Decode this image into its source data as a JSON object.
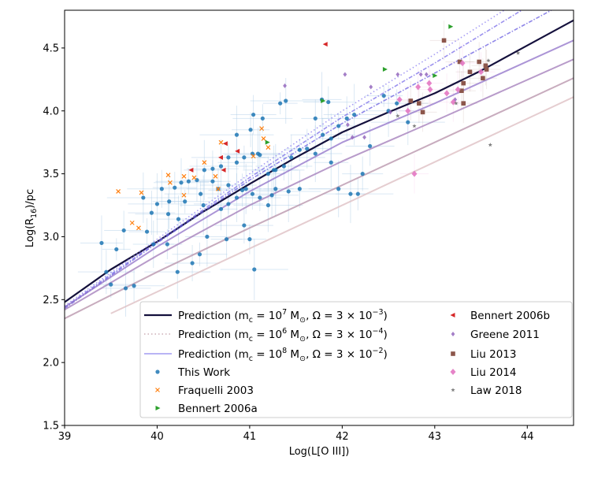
{
  "chart_data": {
    "type": "scatter",
    "xlabel": "Log(L[O III])",
    "ylabel": "Log(R_16)/pc",
    "xlim": [
      39,
      44.5
    ],
    "ylim": [
      1.5,
      4.8
    ],
    "xticks": [
      "39",
      "40",
      "41",
      "42",
      "43",
      "44"
    ],
    "yticks": [
      "1.5",
      "2.0",
      "2.5",
      "3.0",
      "3.5",
      "4.0",
      "4.5"
    ],
    "grid": false,
    "legend_placement": "lower-right",
    "lines": [
      {
        "name": "Prediction (m_c = 10^7 M_⊙, Ω = 3 × 10^−3)",
        "color": "#14103c",
        "style": "solid",
        "in_legend": true,
        "points": [
          [
            39,
            2.48
          ],
          [
            39.5,
            2.74
          ],
          [
            40,
            2.96
          ],
          [
            40.5,
            3.2
          ],
          [
            41,
            3.42
          ],
          [
            41.5,
            3.63
          ],
          [
            42,
            3.83
          ],
          [
            42.5,
            3.99
          ],
          [
            43,
            4.14
          ],
          [
            43.5,
            4.32
          ],
          [
            44,
            4.52
          ],
          [
            44.5,
            4.72
          ]
        ]
      },
      {
        "name": "Prediction (m_c = 10^6 M_⊙, Ω = 3 × 10^−4)",
        "color": "#d9c2c8",
        "style": "dotted",
        "in_legend": true,
        "points": []
      },
      {
        "name": "Prediction (m_c = 10^8 M_⊙, Ω = 3 × 10^−2)",
        "color": "#b9b4f5",
        "style": "solid",
        "in_legend": true,
        "points": []
      },
      {
        "name": "",
        "color": "#8a7cf0",
        "style": "dotted",
        "in_legend": false,
        "points": [
          [
            39,
            2.45
          ],
          [
            40,
            2.98
          ],
          [
            41,
            3.5
          ],
          [
            42,
            4.0
          ],
          [
            43,
            4.45
          ],
          [
            43.75,
            4.8
          ]
        ]
      },
      {
        "name": "",
        "color": "#7a6ce8",
        "style": "dashdot",
        "in_legend": false,
        "points": [
          [
            39,
            2.44
          ],
          [
            40,
            2.96
          ],
          [
            41,
            3.47
          ],
          [
            42,
            3.95
          ],
          [
            43,
            4.38
          ],
          [
            43.94,
            4.8
          ]
        ]
      },
      {
        "name": "",
        "color": "#6a5ee0",
        "style": "dashdot",
        "in_legend": false,
        "points": [
          [
            39,
            2.43
          ],
          [
            40,
            2.95
          ],
          [
            41,
            3.45
          ],
          [
            42,
            3.9
          ],
          [
            43,
            4.3
          ],
          [
            44.26,
            4.8
          ]
        ]
      },
      {
        "name": "",
        "color": "#8f70c8",
        "style": "solid",
        "in_legend": false,
        "points": [
          [
            39,
            2.44
          ],
          [
            40,
            2.92
          ],
          [
            41,
            3.36
          ],
          [
            42,
            3.75
          ],
          [
            43,
            4.06
          ],
          [
            44.5,
            4.56
          ]
        ]
      },
      {
        "name": "",
        "color": "#a07ab8",
        "style": "solid",
        "in_legend": false,
        "points": [
          [
            39,
            2.42
          ],
          [
            40,
            2.85
          ],
          [
            41,
            3.25
          ],
          [
            42,
            3.6
          ],
          [
            43,
            3.92
          ],
          [
            44.5,
            4.41
          ]
        ]
      },
      {
        "name": "",
        "color": "#b590a8",
        "style": "solid",
        "in_legend": false,
        "points": [
          [
            39,
            2.35
          ],
          [
            40,
            2.72
          ],
          [
            41,
            3.07
          ],
          [
            42,
            3.41
          ],
          [
            43,
            3.75
          ],
          [
            44.5,
            4.26
          ]
        ]
      },
      {
        "name": "",
        "color": "#dcbcc0",
        "style": "solid",
        "in_legend": false,
        "points": [
          [
            39.5,
            2.39
          ],
          [
            44.5,
            4.11
          ]
        ]
      }
    ],
    "series": [
      {
        "name": "This Work",
        "marker": "circle",
        "color": "#1f77b4",
        "errorbars": true,
        "points": [
          [
            39.56,
            2.9
          ],
          [
            39.64,
            3.05
          ],
          [
            39.66,
            2.59
          ],
          [
            39.75,
            2.61
          ],
          [
            39.85,
            3.31
          ],
          [
            39.89,
            3.04
          ],
          [
            39.94,
            3.19
          ],
          [
            40.0,
            3.26
          ],
          [
            40.05,
            3.38
          ],
          [
            40.13,
            3.28
          ],
          [
            40.19,
            3.39
          ],
          [
            40.26,
            3.43
          ],
          [
            40.34,
            3.44
          ],
          [
            40.43,
            3.45
          ],
          [
            40.51,
            3.53
          ],
          [
            40.6,
            3.54
          ],
          [
            40.69,
            3.56
          ],
          [
            40.77,
            3.63
          ],
          [
            40.86,
            3.59
          ],
          [
            40.94,
            3.63
          ],
          [
            41.03,
            3.66
          ],
          [
            41.11,
            3.65
          ],
          [
            41.2,
            3.5
          ],
          [
            41.28,
            3.53
          ],
          [
            41.37,
            3.56
          ],
          [
            41.45,
            3.63
          ],
          [
            41.54,
            3.69
          ],
          [
            41.62,
            3.7
          ],
          [
            41.71,
            3.66
          ],
          [
            41.79,
            3.81
          ],
          [
            41.88,
            3.78
          ],
          [
            41.96,
            3.88
          ],
          [
            42.05,
            3.94
          ],
          [
            42.13,
            3.97
          ],
          [
            41.54,
            3.38
          ],
          [
            41.28,
            3.38
          ],
          [
            41.03,
            3.34
          ],
          [
            40.86,
            3.31
          ],
          [
            40.77,
            3.26
          ],
          [
            40.69,
            3.22
          ],
          [
            40.54,
            3.0
          ],
          [
            40.38,
            2.79
          ],
          [
            40.22,
            2.72
          ],
          [
            40.11,
            2.94
          ],
          [
            39.96,
            2.94
          ],
          [
            40.3,
            3.28
          ],
          [
            40.66,
            3.38
          ],
          [
            40.86,
            3.81
          ],
          [
            41.01,
            3.85
          ],
          [
            41.09,
            3.66
          ],
          [
            41.14,
            3.94
          ],
          [
            41.39,
            4.08
          ],
          [
            41.33,
            4.06
          ],
          [
            41.04,
            3.97
          ],
          [
            40.77,
            3.41
          ],
          [
            40.92,
            3.37
          ],
          [
            40.96,
            3.38
          ],
          [
            41.11,
            3.31
          ],
          [
            41.24,
            3.33
          ],
          [
            41.42,
            3.36
          ],
          [
            41.71,
            3.94
          ],
          [
            41.78,
            4.09
          ],
          [
            41.85,
            4.07
          ],
          [
            41.26,
            3.53
          ],
          [
            40.47,
            3.34
          ],
          [
            40.6,
            3.44
          ],
          [
            40.5,
            3.25
          ],
          [
            40.94,
            3.09
          ],
          [
            41.2,
            3.25
          ],
          [
            41.0,
            2.98
          ],
          [
            40.23,
            3.14
          ],
          [
            40.46,
            2.86
          ],
          [
            40.12,
            3.18
          ],
          [
            42.09,
            3.34
          ],
          [
            42.22,
            3.5
          ],
          [
            42.5,
            4.0
          ],
          [
            42.59,
            4.06
          ],
          [
            42.71,
            3.91
          ],
          [
            42.45,
            4.12
          ],
          [
            42.3,
            3.72
          ],
          [
            41.96,
            3.38
          ],
          [
            42.17,
            3.34
          ],
          [
            41.88,
            3.59
          ],
          [
            39.5,
            2.62
          ],
          [
            39.45,
            2.72
          ],
          [
            41.05,
            2.74
          ],
          [
            40.75,
            2.98
          ],
          [
            39.4,
            2.95
          ]
        ]
      },
      {
        "name": "Fraquelli 2003",
        "marker": "x",
        "color": "#ff7f0e",
        "points": [
          [
            39.83,
            3.35
          ],
          [
            39.73,
            3.11
          ],
          [
            39.8,
            3.07
          ],
          [
            40.12,
            3.49
          ],
          [
            40.14,
            3.43
          ],
          [
            40.29,
            3.48
          ],
          [
            40.4,
            3.47
          ],
          [
            40.51,
            3.59
          ],
          [
            40.29,
            3.33
          ],
          [
            40.63,
            3.48
          ],
          [
            40.66,
            3.38
          ],
          [
            40.69,
            3.75
          ],
          [
            41.04,
            3.64
          ],
          [
            41.13,
            3.86
          ],
          [
            41.15,
            3.78
          ],
          [
            41.2,
            3.71
          ],
          [
            39.58,
            3.36
          ]
        ]
      },
      {
        "name": "Bennert 2006a",
        "marker": "triangle-right",
        "color": "#2ca02c",
        "points": [
          [
            41.19,
            3.75
          ],
          [
            41.79,
            4.08
          ],
          [
            42.46,
            4.33
          ],
          [
            43.0,
            4.28
          ],
          [
            43.17,
            4.67
          ]
        ]
      },
      {
        "name": "Bennert 2006b",
        "marker": "triangle-left",
        "color": "#d62728",
        "points": [
          [
            40.74,
            3.74
          ],
          [
            40.87,
            3.68
          ],
          [
            40.69,
            3.63
          ],
          [
            40.37,
            3.53
          ],
          [
            40.72,
            3.53
          ],
          [
            41.82,
            4.53
          ]
        ]
      },
      {
        "name": "Greene 2011",
        "marker": "diamond",
        "color": "#9467bd",
        "points": [
          [
            42.03,
            4.29
          ],
          [
            42.31,
            4.19
          ],
          [
            42.6,
            4.29
          ],
          [
            42.85,
            4.29
          ],
          [
            42.91,
            4.29
          ],
          [
            42.52,
            3.99
          ],
          [
            42.06,
            3.89
          ],
          [
            42.11,
            3.79
          ],
          [
            42.24,
            3.79
          ],
          [
            43.22,
            4.09
          ],
          [
            41.38,
            4.2
          ]
        ]
      },
      {
        "name": "Liu 2013",
        "marker": "square",
        "color": "#8c564b",
        "points": [
          [
            43.1,
            4.56
          ],
          [
            43.27,
            4.39
          ],
          [
            43.48,
            4.39
          ],
          [
            43.55,
            4.36
          ],
          [
            43.56,
            4.33
          ],
          [
            43.38,
            4.31
          ],
          [
            43.31,
            4.22
          ],
          [
            43.29,
            4.16
          ],
          [
            43.52,
            4.26
          ],
          [
            43.31,
            4.06
          ],
          [
            42.74,
            4.08
          ],
          [
            42.83,
            4.06
          ],
          [
            42.87,
            3.99
          ]
        ]
      },
      {
        "name": "Liu 2014",
        "marker": "diamond-large",
        "color": "#e377c2",
        "points": [
          [
            43.3,
            4.38
          ],
          [
            43.5,
            4.31
          ],
          [
            42.82,
            4.19
          ],
          [
            42.94,
            4.22
          ],
          [
            42.95,
            4.17
          ],
          [
            43.13,
            4.14
          ],
          [
            43.25,
            4.17
          ],
          [
            43.2,
            4.07
          ],
          [
            42.62,
            4.09
          ],
          [
            42.71,
            4.0
          ],
          [
            42.78,
            3.5
          ]
        ]
      },
      {
        "name": "Law 2018",
        "marker": "star",
        "color": "#7f7f7f",
        "points": [
          [
            43.9,
            4.46
          ],
          [
            43.58,
            4.4
          ],
          [
            43.23,
            4.06
          ],
          [
            42.78,
            3.88
          ],
          [
            42.6,
            3.96
          ],
          [
            43.6,
            3.73
          ]
        ]
      }
    ],
    "legend": {
      "left": [
        "Prediction (m_c = 10^7 M_⊙, Ω = 3 × 10^−3)",
        "Prediction (m_c = 10^6 M_⊙, Ω = 3 × 10^−4)",
        "Prediction (m_c = 10^8 M_⊙, Ω = 3 × 10^−2)",
        "This Work",
        "Fraquelli 2003",
        "Bennert 2006a"
      ],
      "right": [
        "Bennert 2006b",
        "Greene 2011",
        "Liu 2013",
        "Liu 2014",
        "Law 2018"
      ]
    }
  }
}
